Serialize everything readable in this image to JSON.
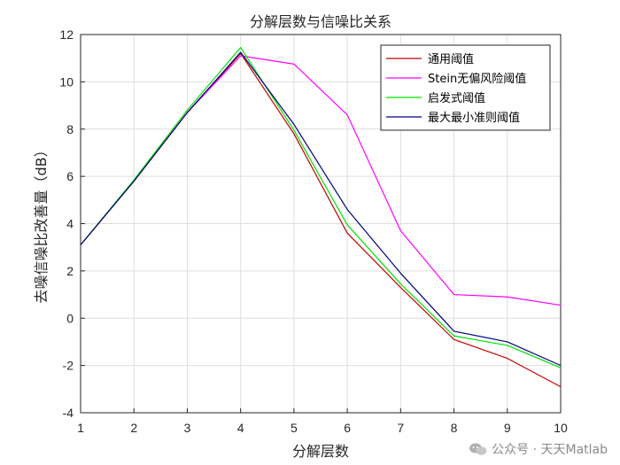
{
  "chart_data": {
    "type": "line",
    "title": "分解层数与信噪比关系",
    "xlabel": "分解层数",
    "ylabel": "去噪信噪比改善量（dB）",
    "xlim": [
      1,
      10
    ],
    "ylim": [
      -4,
      12
    ],
    "xticks": [
      1,
      2,
      3,
      4,
      5,
      6,
      7,
      8,
      9,
      10
    ],
    "yticks": [
      -4,
      -2,
      0,
      2,
      4,
      6,
      8,
      10,
      12
    ],
    "grid": true,
    "legend_position": "top-right",
    "x": [
      1,
      2,
      3,
      4,
      5,
      6,
      7,
      8,
      9,
      10
    ],
    "series": [
      {
        "name": "通用阈值",
        "color": "#c00000",
        "values": [
          3.1,
          5.8,
          8.7,
          11.2,
          7.8,
          3.6,
          1.3,
          -0.9,
          -1.7,
          -2.9
        ]
      },
      {
        "name": "Stein无偏风险阈值",
        "color": "#ff00ff",
        "values": [
          3.1,
          5.8,
          8.7,
          11.1,
          10.75,
          8.6,
          3.7,
          1.0,
          0.9,
          0.55
        ]
      },
      {
        "name": "启发式阈值",
        "color": "#00e000",
        "values": [
          3.1,
          5.85,
          8.8,
          11.45,
          7.95,
          3.95,
          1.45,
          -0.75,
          -1.15,
          -2.1
        ]
      },
      {
        "name": "最大最小准则阈值",
        "color": "#000080",
        "values": [
          3.1,
          5.8,
          8.7,
          11.25,
          8.2,
          4.6,
          1.9,
          -0.55,
          -1.0,
          -2.0
        ]
      }
    ]
  },
  "watermark": {
    "text": "公众号 · 天天Matlab",
    "icon": "wechat-icon"
  }
}
